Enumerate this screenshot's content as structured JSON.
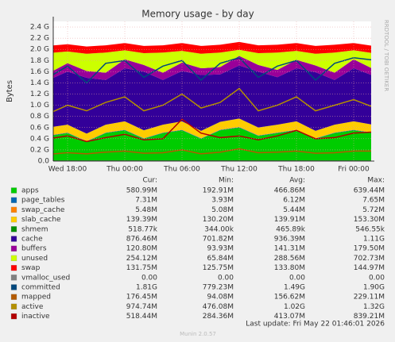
{
  "chart_data": {
    "type": "area",
    "title": "Memory usage - by day",
    "y_label": "Bytes",
    "side_text": "RRDTOOL / TOBI OETIKER",
    "footer_update": "Last update: Fri May 22 01:46:01 2026",
    "footer_version": "Munin 2.0.57",
    "legend_columns": [
      "Cur:",
      "Min:",
      "Avg:",
      "Max:"
    ],
    "categories": [
      null,
      "Wed 18:00",
      null,
      null,
      "Thu 00:00",
      null,
      null,
      "Thu 06:00",
      null,
      null,
      "Thu 12:00",
      null,
      null,
      "Thu 18:00",
      null,
      null,
      "Fri 00:00",
      null
    ],
    "ylim": [
      0,
      2.5
    ],
    "yticks": [
      {
        "value": 0,
        "label": "0.0"
      },
      {
        "value": 0.2,
        "label": "0.2 G"
      },
      {
        "value": 0.4,
        "label": "0.4 G"
      },
      {
        "value": 0.6,
        "label": "0.6 G"
      },
      {
        "value": 0.8,
        "label": "0.8 G"
      },
      {
        "value": 1.0,
        "label": "1.0 G"
      },
      {
        "value": 1.2,
        "label": "1.2 G"
      },
      {
        "value": 1.4,
        "label": "1.4 G"
      },
      {
        "value": 1.6,
        "label": "1.6 G"
      },
      {
        "value": 1.8,
        "label": "1.8 G"
      },
      {
        "value": 2.0,
        "label": "2.0 G"
      },
      {
        "value": 2.2,
        "label": "2.2 G"
      },
      {
        "value": 2.4,
        "label": "2.4 G"
      }
    ],
    "grid": true,
    "series": [
      {
        "name": "apps",
        "type": "area",
        "color": "#00CC00",
        "cur": "580.99M",
        "min": "192.91M",
        "avg": "466.86M",
        "max": "639.44M",
        "values": [
          0.45,
          0.5,
          0.35,
          0.5,
          0.55,
          0.4,
          0.5,
          0.55,
          0.4,
          0.55,
          0.6,
          0.45,
          0.5,
          0.55,
          0.4,
          0.5,
          0.55,
          0.5
        ]
      },
      {
        "name": "page_tables",
        "type": "area",
        "color": "#0066B3",
        "cur": "7.31M",
        "min": "3.93M",
        "avg": "6.12M",
        "max": "7.65M",
        "values": [
          0.007,
          0.007,
          0.006,
          0.007,
          0.007,
          0.006,
          0.007,
          0.007,
          0.006,
          0.007,
          0.007,
          0.006,
          0.007,
          0.007,
          0.006,
          0.007,
          0.007,
          0.007
        ]
      },
      {
        "name": "swap_cache",
        "type": "area",
        "color": "#FF8000",
        "cur": "5.48M",
        "min": "5.08M",
        "avg": "5.44M",
        "max": "5.72M",
        "values": [
          0.005,
          0.005,
          0.005,
          0.005,
          0.005,
          0.005,
          0.005,
          0.005,
          0.005,
          0.005,
          0.005,
          0.005,
          0.005,
          0.005,
          0.005,
          0.005,
          0.005,
          0.005
        ]
      },
      {
        "name": "slab_cache",
        "type": "area",
        "color": "#FFCC00",
        "cur": "139.39M",
        "min": "130.20M",
        "avg": "139.91M",
        "max": "153.30M",
        "values": [
          0.14,
          0.14,
          0.13,
          0.14,
          0.15,
          0.14,
          0.14,
          0.15,
          0.13,
          0.14,
          0.15,
          0.14,
          0.14,
          0.15,
          0.13,
          0.14,
          0.15,
          0.14
        ]
      },
      {
        "name": "shmem",
        "type": "area",
        "color": "#008F00",
        "cur": "518.77k",
        "min": "344.00k",
        "avg": "465.89k",
        "max": "546.55k",
        "values": [
          0.0005,
          0.0005,
          0.0004,
          0.0005,
          0.0005,
          0.0004,
          0.0005,
          0.0005,
          0.0004,
          0.0005,
          0.0005,
          0.0004,
          0.0005,
          0.0005,
          0.0004,
          0.0005,
          0.0005,
          0.0005
        ]
      },
      {
        "name": "cache",
        "type": "area",
        "color": "#330099",
        "cur": "876.46M",
        "min": "701.82M",
        "avg": "936.39M",
        "max": "1.11G",
        "values": [
          0.85,
          0.95,
          1.0,
          0.8,
          0.95,
          1.05,
          0.8,
          0.9,
          1.0,
          0.85,
          0.95,
          1.0,
          0.85,
          0.95,
          1.05,
          0.8,
          0.95,
          0.88
        ]
      },
      {
        "name": "buffers",
        "type": "area",
        "color": "#990099",
        "cur": "120.80M",
        "min": "93.93M",
        "avg": "141.31M",
        "max": "179.50M",
        "values": [
          0.12,
          0.15,
          0.12,
          0.13,
          0.16,
          0.12,
          0.13,
          0.15,
          0.12,
          0.13,
          0.17,
          0.12,
          0.13,
          0.15,
          0.12,
          0.13,
          0.16,
          0.12
        ]
      },
      {
        "name": "unused",
        "type": "area",
        "color": "#CCFF00",
        "cur": "254.12M",
        "min": "65.84M",
        "avg": "288.56M",
        "max": "702.73M",
        "values": [
          0.36,
          0.21,
          0.31,
          0.36,
          0.16,
          0.21,
          0.36,
          0.21,
          0.26,
          0.26,
          0.11,
          0.21,
          0.31,
          0.16,
          0.21,
          0.36,
          0.16,
          0.28
        ]
      },
      {
        "name": "swap",
        "type": "area",
        "color": "#FF0000",
        "cur": "131.75M",
        "min": "125.75M",
        "avg": "133.80M",
        "max": "144.97M",
        "values": [
          0.13,
          0.13,
          0.13,
          0.13,
          0.13,
          0.13,
          0.13,
          0.14,
          0.14,
          0.14,
          0.14,
          0.14,
          0.14,
          0.14,
          0.14,
          0.14,
          0.13,
          0.13
        ]
      },
      {
        "name": "vmalloc_used",
        "type": "line",
        "color": "#808080",
        "cur": "0.00",
        "min": "0.00",
        "avg": "0.00",
        "max": "0.00",
        "values": [
          0,
          0,
          0,
          0,
          0,
          0,
          0,
          0,
          0,
          0,
          0,
          0,
          0,
          0,
          0,
          0,
          0,
          0
        ]
      },
      {
        "name": "committed",
        "type": "line",
        "color": "#00487D",
        "cur": "1.81G",
        "min": "779.23M",
        "avg": "1.49G",
        "max": "1.90G",
        "values": [
          1.5,
          1.7,
          1.4,
          1.75,
          1.8,
          1.5,
          1.7,
          1.8,
          1.45,
          1.75,
          1.85,
          1.5,
          1.7,
          1.8,
          1.45,
          1.75,
          1.85,
          1.81
        ]
      },
      {
        "name": "mapped",
        "type": "line",
        "color": "#B35A00",
        "cur": "176.45M",
        "min": "94.08M",
        "avg": "156.62M",
        "max": "229.11M",
        "values": [
          0.12,
          0.15,
          0.13,
          0.16,
          0.18,
          0.14,
          0.15,
          0.2,
          0.13,
          0.16,
          0.22,
          0.15,
          0.16,
          0.18,
          0.14,
          0.15,
          0.18,
          0.18
        ]
      },
      {
        "name": "active",
        "type": "line",
        "color": "#B38F00",
        "cur": "974.74M",
        "min": "476.08M",
        "avg": "1.02G",
        "max": "1.32G",
        "values": [
          0.85,
          1.0,
          0.9,
          1.05,
          1.15,
          0.9,
          1.0,
          1.2,
          0.95,
          1.05,
          1.3,
          0.9,
          1.0,
          1.15,
          0.9,
          1.0,
          1.1,
          0.97
        ]
      },
      {
        "name": "inactive",
        "type": "line",
        "color": "#B30000",
        "cur": "518.44M",
        "min": "284.36M",
        "avg": "413.07M",
        "max": "839.21M",
        "values": [
          0.4,
          0.45,
          0.35,
          0.42,
          0.48,
          0.38,
          0.4,
          0.75,
          0.5,
          0.42,
          0.45,
          0.38,
          0.45,
          0.55,
          0.4,
          0.42,
          0.5,
          0.52
        ]
      }
    ]
  }
}
